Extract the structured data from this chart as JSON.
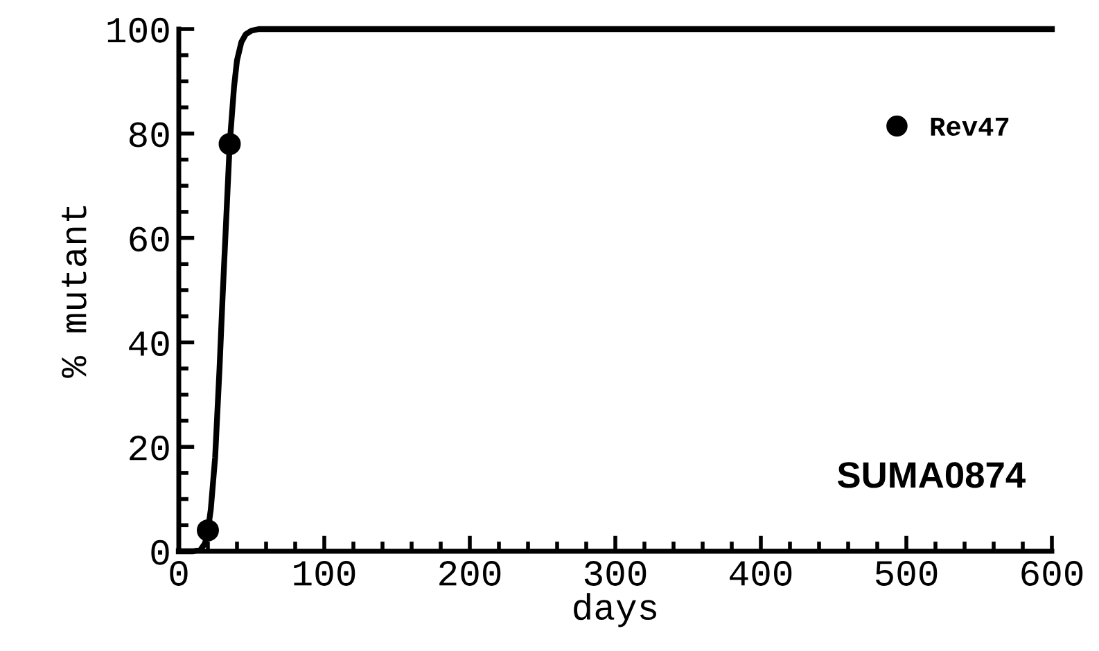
{
  "chart_data": {
    "type": "scatter",
    "xlabel": "days",
    "ylabel": "% mutant",
    "series": [
      {
        "name": "Rev47",
        "color": "#000000",
        "marker": "circle",
        "x": [
          20,
          35
        ],
        "values": [
          4,
          78
        ]
      },
      {
        "type": "line",
        "color": "#000000",
        "marker": "none",
        "line_style": "solid",
        "x": [
          0,
          10,
          15,
          18,
          20,
          22,
          25,
          28,
          30,
          33,
          35,
          38,
          40,
          43,
          46,
          50,
          55,
          600
        ],
        "values": [
          0,
          0,
          0.3,
          1.5,
          4,
          8,
          18,
          35,
          48,
          66,
          78,
          89,
          94,
          97.5,
          99,
          99.7,
          100,
          100
        ]
      }
    ],
    "annotations": [
      "SUMA0874"
    ],
    "xlim": [
      0,
      600
    ],
    "xticks": [
      0,
      100,
      200,
      300,
      400,
      500,
      600
    ],
    "ylim": [
      0,
      100
    ],
    "yticks": [
      0,
      20,
      40,
      60,
      80,
      100
    ],
    "grid": false,
    "legend": "top right"
  }
}
